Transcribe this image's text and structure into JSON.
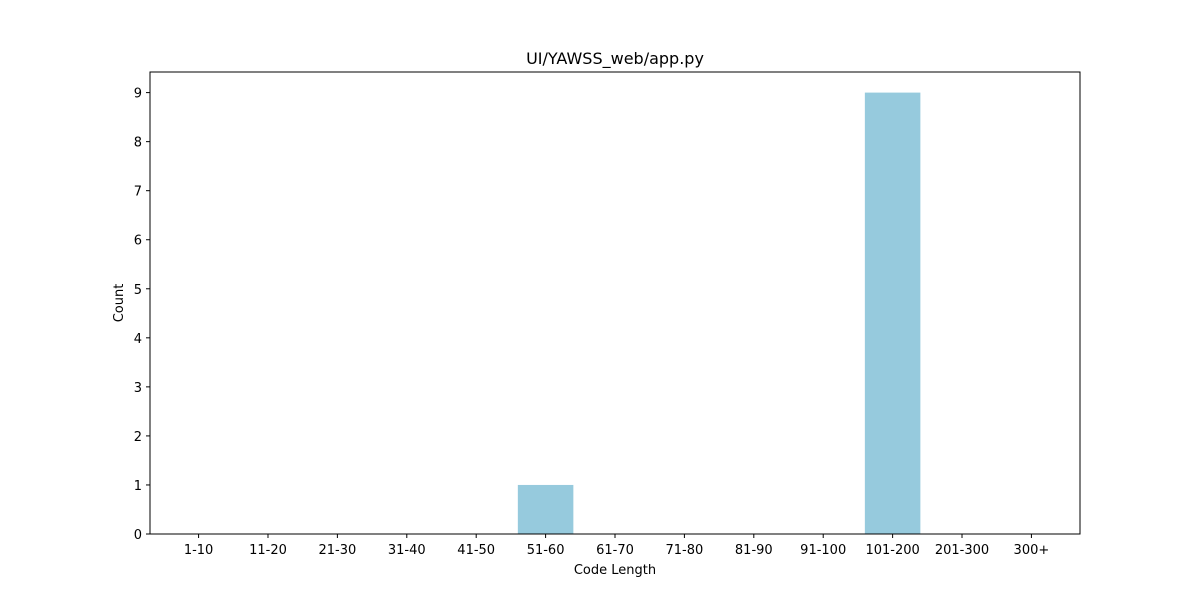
{
  "chart_data": {
    "type": "bar",
    "title": "UI/YAWSS_web/app.py",
    "xlabel": "Code Length",
    "ylabel": "Count",
    "categories": [
      "1-10",
      "11-20",
      "21-30",
      "31-40",
      "41-50",
      "51-60",
      "61-70",
      "71-80",
      "81-90",
      "91-100",
      "101-200",
      "201-300",
      "300+"
    ],
    "values": [
      0,
      0,
      0,
      0,
      0,
      1,
      0,
      0,
      0,
      0,
      9,
      0,
      0
    ],
    "ylim": [
      0,
      9.42
    ],
    "yticks": [
      0,
      1,
      2,
      3,
      4,
      5,
      6,
      7,
      8,
      9
    ],
    "bar_color": "#96cadd",
    "grid": false,
    "legend": "none"
  }
}
